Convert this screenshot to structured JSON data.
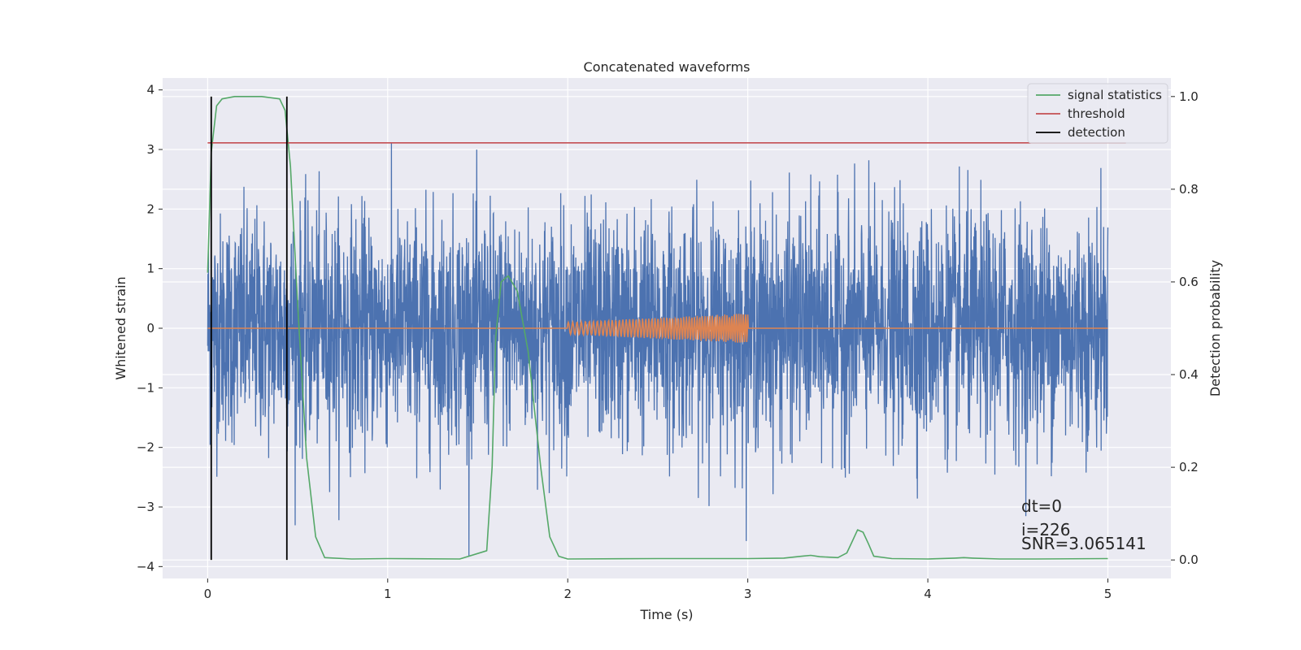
{
  "chart_data": {
    "type": "line",
    "title": "Concatenated waveforms",
    "xlabel": "Time (s)",
    "ylabel": "Whitened strain",
    "y2label": "Detection probability",
    "xlim": [
      -0.25,
      5.35
    ],
    "ylim": [
      -4.2,
      4.2
    ],
    "y2lim": [
      -0.04,
      1.04
    ],
    "xticks": [
      "0",
      "1",
      "2",
      "3",
      "4",
      "5"
    ],
    "yticks": [
      "−4",
      "−3",
      "−2",
      "−1",
      "0",
      "1",
      "2",
      "3",
      "4"
    ],
    "y2ticks": [
      "0.0",
      "0.2",
      "0.4",
      "0.6",
      "0.8",
      "1.0"
    ],
    "grid": true,
    "legend_position": "top-right",
    "legend": [
      {
        "label": "signal statistics",
        "color": "#55a868"
      },
      {
        "label": "threshold",
        "color": "#c44e52"
      },
      {
        "label": "detection",
        "color": "#000000"
      }
    ],
    "series": [
      {
        "role": "noise",
        "color": "#4c72b0",
        "x_range": [
          0,
          5
        ],
        "approx_amplitude": 3.5
      },
      {
        "role": "injected-chirp",
        "color": "#dd8452",
        "x_range": [
          2,
          3
        ],
        "amplitude_start": 0.1,
        "amplitude_end": 0.25
      },
      {
        "role": "signal-statistics",
        "color": "#55a868",
        "axis": "right",
        "x": [
          0,
          0.02,
          0.05,
          0.08,
          0.15,
          0.3,
          0.4,
          0.43,
          0.46,
          0.5,
          0.55,
          0.6,
          0.65,
          0.8,
          1.0,
          1.4,
          1.55,
          1.58,
          1.6,
          1.63,
          1.67,
          1.72,
          1.78,
          1.85,
          1.9,
          1.95,
          2.0,
          2.5,
          3.0,
          3.2,
          3.3,
          3.35,
          3.4,
          3.5,
          3.55,
          3.58,
          3.61,
          3.64,
          3.67,
          3.7,
          3.8,
          4.0,
          4.15,
          4.2,
          4.25,
          4.4,
          4.6,
          5.0
        ],
        "y": [
          0.62,
          0.88,
          0.98,
          0.995,
          1.0,
          1.0,
          0.995,
          0.97,
          0.85,
          0.55,
          0.22,
          0.05,
          0.005,
          0.002,
          0.003,
          0.002,
          0.02,
          0.2,
          0.48,
          0.6,
          0.613,
          0.58,
          0.45,
          0.2,
          0.05,
          0.008,
          0.002,
          0.003,
          0.003,
          0.004,
          0.008,
          0.01,
          0.007,
          0.005,
          0.015,
          0.04,
          0.065,
          0.06,
          0.035,
          0.008,
          0.003,
          0.002,
          0.004,
          0.005,
          0.004,
          0.002,
          0.002,
          0.003
        ]
      },
      {
        "role": "threshold",
        "color": "#c44e52",
        "axis": "right",
        "x_range": [
          0,
          5.1
        ],
        "value": 0.9
      },
      {
        "role": "detection",
        "color": "#000000",
        "axis": "right",
        "x": [
          0.02,
          0.44
        ],
        "y_range": [
          0,
          1.0
        ]
      }
    ],
    "annotations": [
      "dt=0",
      "i=226",
      "SNR=3.065141"
    ]
  }
}
